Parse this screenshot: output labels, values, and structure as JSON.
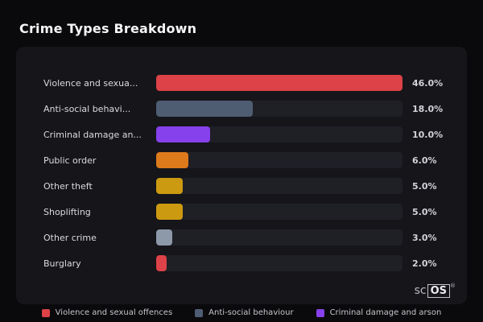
{
  "page": {
    "title": "Crime Types Breakdown"
  },
  "chart_data": {
    "type": "bar",
    "orientation": "horizontal",
    "title": "Crime Types Breakdown",
    "categories": [
      "Violence and sexua...",
      "Anti-social behavi...",
      "Criminal damage an...",
      "Public order",
      "Other theft",
      "Shoplifting",
      "Other crime",
      "Burglary"
    ],
    "values": [
      46.0,
      18.0,
      10.0,
      6.0,
      5.0,
      5.0,
      3.0,
      2.0
    ],
    "value_labels": [
      "46.0%",
      "18.0%",
      "10.0%",
      "6.0%",
      "5.0%",
      "3.0%",
      "2.0%"
    ],
    "value_labels_full": [
      "46.0%",
      "18.0%",
      "10.0%",
      "6.0%",
      "5.0%",
      "5.0%",
      "3.0%",
      "2.0%"
    ],
    "colors": [
      "#dc4247",
      "#4f5d73",
      "#8640ec",
      "#dd7a1c",
      "#cc9a10",
      "#cc9a10",
      "#8d99a9",
      "#dc4247"
    ],
    "xlim": [
      0,
      46
    ],
    "xlabel": "",
    "ylabel": "",
    "grid": false,
    "legend_position": "bottom"
  },
  "legend": {
    "items": [
      {
        "label": "Violence and sexual offences",
        "color": "#dc4247"
      },
      {
        "label": "Anti-social behaviour",
        "color": "#4f5d73"
      },
      {
        "label": "Criminal damage and arson",
        "color": "#8640ec"
      }
    ]
  },
  "watermark": {
    "prefix": "sc",
    "boxed": "OS",
    "registered": "®"
  }
}
